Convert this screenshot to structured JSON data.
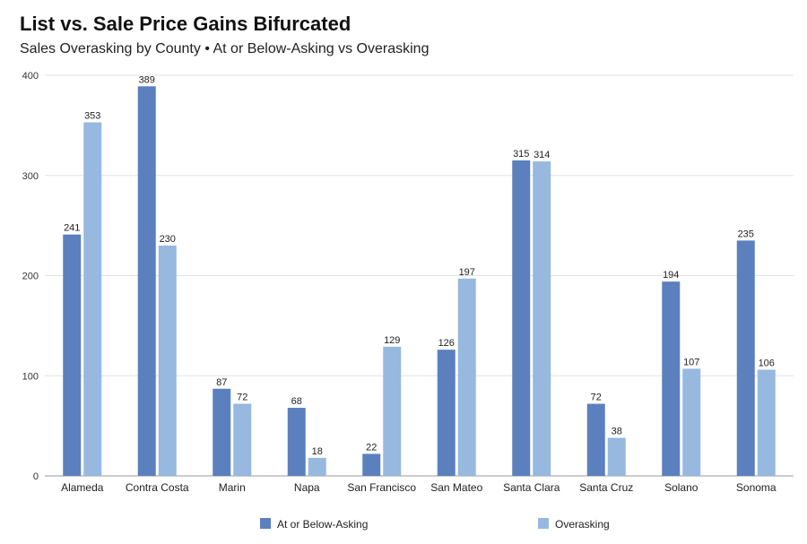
{
  "header": {
    "title": "List vs. Sale Price Gains Bifurcated",
    "subtitle": "Sales Overasking by County • At or Below-Asking vs Overasking"
  },
  "colors": {
    "series0": "#5b80bd",
    "series1": "#97b8df",
    "grid": "#e3e3e3",
    "axis": "#999999"
  },
  "chart_data": {
    "type": "bar",
    "title": "List vs. Sale Price Gains Bifurcated",
    "subtitle": "Sales Overasking by County • At or Below-Asking vs Overasking",
    "xlabel": "",
    "ylabel": "",
    "ylim": [
      0,
      400
    ],
    "yticks": [
      "0",
      "100",
      "200",
      "300",
      "400"
    ],
    "grid": true,
    "legend_position": "bottom",
    "categories": [
      "Alameda",
      "Contra Costa",
      "Marin",
      "Napa",
      "San Francisco",
      "San Mateo",
      "Santa Clara",
      "Santa Cruz",
      "Solano",
      "Sonoma"
    ],
    "series": [
      {
        "name": "At or Below-Asking",
        "values": [
          241,
          389,
          87,
          68,
          22,
          126,
          315,
          72,
          194,
          235
        ],
        "labels": [
          "241",
          "389",
          "87",
          "68",
          "22",
          "126",
          "315",
          "72",
          "194",
          "235"
        ]
      },
      {
        "name": "Overasking",
        "values": [
          353,
          230,
          72,
          18,
          129,
          197,
          314,
          38,
          107,
          106
        ],
        "labels": [
          "353",
          "230",
          "72",
          "18",
          "129",
          "197",
          "314",
          "38",
          "107",
          "106"
        ]
      }
    ]
  }
}
